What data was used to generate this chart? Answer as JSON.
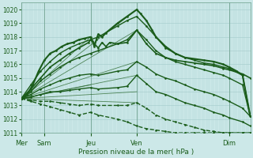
{
  "xlabel": "Pression niveau de la mer( hPa )",
  "background_color": "#cce8e8",
  "grid_color_v": "#aad0d0",
  "grid_color_h": "#aad0d0",
  "line_color": "#1a5c1a",
  "ylim": [
    1011.0,
    1020.5
  ],
  "yticks": [
    1011,
    1012,
    1013,
    1014,
    1015,
    1016,
    1017,
    1018,
    1019,
    1020
  ],
  "xtick_labels": [
    "Mer",
    "Sam",
    "Jeu",
    "Ven",
    "Dim"
  ],
  "xtick_positions": [
    0,
    12,
    36,
    60,
    108
  ],
  "total_points": 120,
  "fan_lines": [
    {
      "x0": 0,
      "y0": 1013.5,
      "x1": 60,
      "y1": 1020.0
    },
    {
      "x0": 0,
      "y0": 1013.5,
      "x1": 60,
      "y1": 1018.5
    },
    {
      "x0": 0,
      "y0": 1013.5,
      "x1": 60,
      "y1": 1016.2
    },
    {
      "x0": 0,
      "y0": 1013.5,
      "x1": 60,
      "y1": 1015.2
    },
    {
      "x0": 0,
      "y0": 1013.5,
      "x1": 60,
      "y1": 1014.0
    },
    {
      "x0": 0,
      "y0": 1013.5,
      "x1": 60,
      "y1": 1013.2
    },
    {
      "x0": 0,
      "y0": 1013.5,
      "x1": 36,
      "y1": 1018.0
    },
    {
      "x0": 0,
      "y0": 1013.5,
      "x1": 36,
      "y1": 1014.5
    }
  ],
  "series": [
    {
      "style": "-",
      "linewidth": 1.2,
      "x": [
        0,
        5,
        10,
        15,
        20,
        25,
        30,
        35,
        36,
        38,
        40,
        42,
        44,
        46,
        50,
        55,
        60,
        65,
        70,
        75,
        80,
        85,
        90,
        95,
        100,
        105,
        108,
        115,
        119
      ],
      "y": [
        1013.5,
        1014.2,
        1015.0,
        1015.8,
        1016.3,
        1016.8,
        1017.2,
        1017.6,
        1017.8,
        1017.5,
        1017.2,
        1017.6,
        1017.3,
        1017.6,
        1017.5,
        1017.6,
        1018.5,
        1017.5,
        1016.8,
        1016.5,
        1016.3,
        1016.2,
        1016.1,
        1016.0,
        1015.9,
        1015.7,
        1015.6,
        1015.3,
        1015.0
      ]
    },
    {
      "style": "-",
      "linewidth": 1.5,
      "x": [
        0,
        3,
        6,
        9,
        12,
        15,
        18,
        21,
        24,
        27,
        30,
        33,
        36,
        37,
        38,
        39,
        40,
        42,
        44,
        50,
        55,
        60,
        62,
        65,
        68,
        70,
        75,
        80,
        85,
        90,
        95,
        100,
        105,
        108,
        112,
        115,
        119
      ],
      "y": [
        1013.5,
        1013.8,
        1014.5,
        1015.5,
        1016.3,
        1016.8,
        1017.0,
        1017.3,
        1017.5,
        1017.6,
        1017.8,
        1017.9,
        1018.0,
        1017.7,
        1017.3,
        1017.8,
        1018.2,
        1018.0,
        1018.3,
        1019.0,
        1019.5,
        1020.0,
        1019.7,
        1019.2,
        1018.5,
        1018.0,
        1017.3,
        1016.8,
        1016.5,
        1016.4,
        1016.3,
        1016.2,
        1016.0,
        1015.8,
        1015.5,
        1015.2,
        1012.2
      ]
    },
    {
      "style": "-",
      "linewidth": 1.0,
      "x": [
        0,
        5,
        10,
        15,
        20,
        25,
        30,
        36,
        40,
        50,
        55,
        60,
        65,
        70,
        75,
        80,
        85,
        90,
        95,
        100,
        105,
        108,
        115,
        119
      ],
      "y": [
        1013.5,
        1014.5,
        1015.5,
        1016.2,
        1016.8,
        1017.2,
        1017.5,
        1017.8,
        1018.0,
        1018.8,
        1019.2,
        1019.5,
        1018.8,
        1018.0,
        1017.2,
        1016.8,
        1016.5,
        1016.3,
        1016.1,
        1016.0,
        1015.8,
        1015.7,
        1015.2,
        1012.2
      ]
    },
    {
      "style": "-",
      "linewidth": 1.0,
      "x": [
        0,
        5,
        10,
        15,
        20,
        25,
        30,
        36,
        40,
        50,
        55,
        60,
        65,
        70,
        75,
        80,
        85,
        90,
        95,
        100,
        105,
        108,
        115,
        119
      ],
      "y": [
        1013.5,
        1014.0,
        1014.8,
        1015.3,
        1015.8,
        1016.2,
        1016.5,
        1016.8,
        1017.0,
        1017.5,
        1017.8,
        1018.5,
        1017.8,
        1017.0,
        1016.5,
        1016.2,
        1016.0,
        1015.8,
        1015.6,
        1015.4,
        1015.2,
        1015.0,
        1014.5,
        1012.2
      ]
    },
    {
      "style": "-",
      "linewidth": 1.0,
      "x": [
        0,
        5,
        10,
        15,
        20,
        25,
        30,
        36,
        40,
        50,
        55,
        60,
        65,
        70,
        75,
        80,
        85,
        90,
        95,
        100,
        105,
        108,
        115,
        119
      ],
      "y": [
        1013.5,
        1013.8,
        1014.2,
        1014.5,
        1014.8,
        1015.0,
        1015.2,
        1015.3,
        1015.2,
        1015.5,
        1015.6,
        1016.2,
        1015.8,
        1015.3,
        1015.0,
        1014.8,
        1014.5,
        1014.2,
        1014.0,
        1013.8,
        1013.5,
        1013.3,
        1012.8,
        1012.2
      ]
    },
    {
      "style": "-",
      "linewidth": 1.0,
      "x": [
        0,
        5,
        10,
        15,
        20,
        25,
        30,
        36,
        40,
        50,
        55,
        60,
        65,
        70,
        75,
        80,
        85,
        90,
        95,
        100,
        105,
        108,
        115,
        119
      ],
      "y": [
        1013.5,
        1013.6,
        1013.8,
        1014.0,
        1014.0,
        1014.1,
        1014.2,
        1014.3,
        1014.2,
        1014.3,
        1014.4,
        1015.2,
        1014.6,
        1014.0,
        1013.8,
        1013.5,
        1013.2,
        1013.0,
        1012.8,
        1012.5,
        1012.3,
        1012.1,
        1011.8,
        1011.5
      ]
    },
    {
      "style": "--",
      "linewidth": 1.0,
      "x": [
        0,
        5,
        10,
        15,
        20,
        25,
        30,
        36,
        40,
        50,
        55,
        60,
        65,
        70,
        75,
        80,
        85,
        90,
        95,
        100,
        105,
        108,
        115,
        119
      ],
      "y": [
        1013.5,
        1013.4,
        1013.3,
        1013.3,
        1013.2,
        1013.1,
        1013.0,
        1013.1,
        1013.0,
        1013.0,
        1013.0,
        1013.2,
        1012.8,
        1012.3,
        1012.0,
        1011.8,
        1011.6,
        1011.4,
        1011.2,
        1011.1,
        1011.0,
        1011.0,
        1011.0,
        1011.0
      ]
    },
    {
      "style": "--",
      "linewidth": 1.0,
      "x": [
        0,
        5,
        10,
        15,
        20,
        25,
        30,
        36,
        40,
        50,
        55,
        60,
        65,
        70,
        75,
        80,
        85,
        90,
        95,
        100,
        105,
        108,
        115,
        119
      ],
      "y": [
        1013.5,
        1013.3,
        1013.1,
        1012.9,
        1012.7,
        1012.5,
        1012.3,
        1012.5,
        1012.3,
        1012.0,
        1011.8,
        1011.5,
        1011.3,
        1011.2,
        1011.1,
        1011.0,
        1011.0,
        1011.0,
        1011.0,
        1011.0,
        1011.0,
        1011.0,
        1011.0,
        1011.0
      ]
    }
  ]
}
